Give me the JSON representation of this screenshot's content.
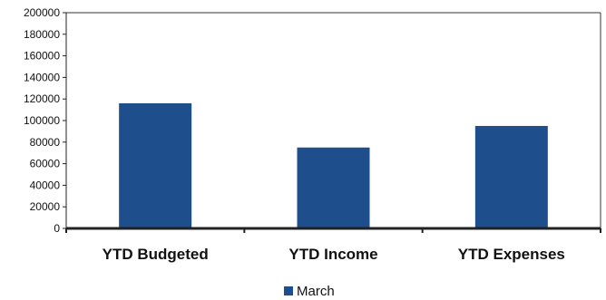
{
  "chart_data": {
    "type": "bar",
    "categories": [
      "YTD Budgeted",
      "YTD Income",
      "YTD Expenses"
    ],
    "series": [
      {
        "name": "March",
        "values": [
          116000,
          75000,
          95000
        ],
        "color": "#1f4e8c"
      }
    ],
    "yticks": [
      "200000",
      "180000",
      "160000",
      "140000",
      "120000",
      "100000",
      "80000",
      "60000",
      "40000",
      "20000",
      "0"
    ],
    "ylim": [
      0,
      200000
    ],
    "grid": false,
    "legend": "bottom"
  }
}
